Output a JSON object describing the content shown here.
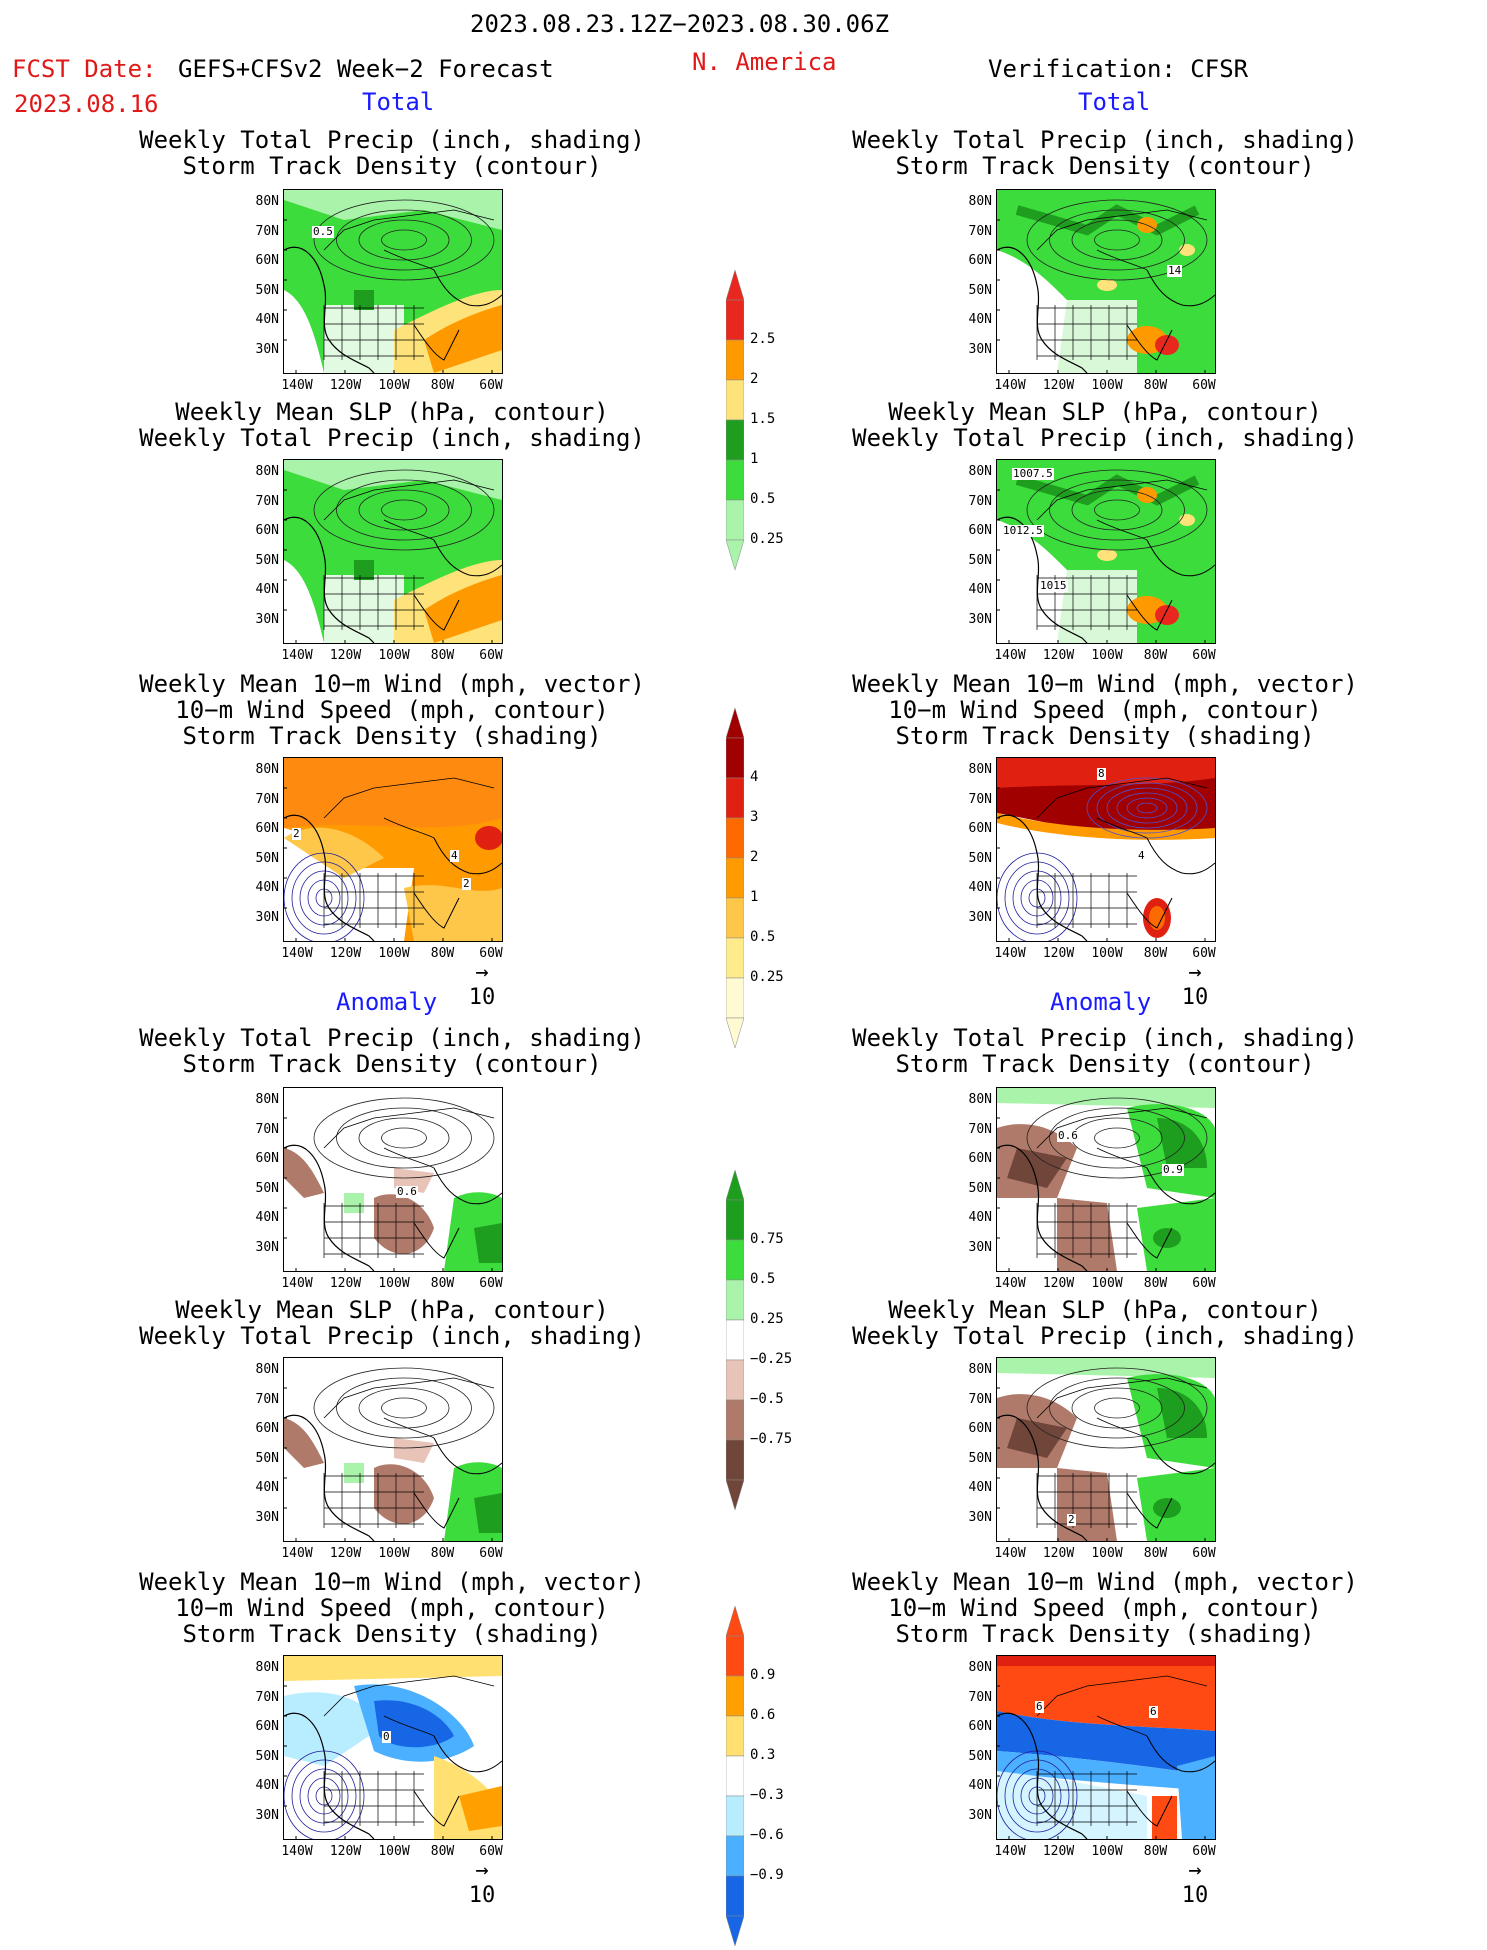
{
  "header": {
    "date_range": "2023.08.23.12Z−2023.08.30.06Z",
    "fcst_label": "FCST Date:",
    "fcst_model": "GEFS+CFSv2 Week−2 Forecast",
    "region": "N. America",
    "verification": "Verification: CFSR",
    "fcst_date": "2023.08.16"
  },
  "sections": {
    "total": "Total",
    "anomaly": "Anomaly"
  },
  "panel_titles": {
    "precip_track": "Weekly Total Precip (inch, shading)\nStorm Track Density (contour)",
    "slp_precip": "Weekly Mean SLP (hPa, contour)\nWeekly Total Precip (inch, shading)",
    "wind_track": "Weekly Mean 10−m Wind (mph, vector)\n10−m Wind Speed (mph, contour)\nStorm Track Density (shading)"
  },
  "axes": {
    "lat_labels": [
      "80N",
      "70N",
      "60N",
      "50N",
      "40N",
      "30N"
    ],
    "lon_labels": [
      "140W",
      "120W",
      "100W",
      "80W",
      "60W"
    ]
  },
  "vector_ref": "10",
  "colorbars": {
    "precip_total": {
      "labels": [
        "2.5",
        "2",
        "1.5",
        "1",
        "0.5",
        "0.25"
      ],
      "colors": [
        "#e8281e",
        "#ff9900",
        "#fde37a",
        "#1f9d1f",
        "#3ddc3d",
        "#aaf3aa"
      ]
    },
    "track_total": {
      "labels": [
        "4",
        "3",
        "2",
        "1",
        "0.5",
        "0.25"
      ],
      "colors": [
        "#a00000",
        "#e02010",
        "#ff6a00",
        "#ff9a00",
        "#ffc74a",
        "#fdeb8c",
        "#fffad2"
      ]
    },
    "precip_anom": {
      "labels": [
        "0.75",
        "0.5",
        "0.25",
        "−0.25",
        "−0.5",
        "−0.75"
      ],
      "colors": [
        "#1e9e1e",
        "#3ddc3d",
        "#aaf3aa",
        "#ffffff",
        "#e8c4b8",
        "#b07a6a",
        "#70453a"
      ]
    },
    "track_anom": {
      "labels": [
        "0.9",
        "0.6",
        "0.3",
        "−0.3",
        "−0.6",
        "−0.9"
      ],
      "colors": [
        "#ff4a14",
        "#ff9f00",
        "#ffe070",
        "#ffffff",
        "#b8ecff",
        "#4ab0ff",
        "#1666e6"
      ]
    }
  },
  "contour_labels": {
    "fc_total_precip": "0.5",
    "ver_total_precip": "14",
    "ver_slp_1": "1007.5",
    "ver_slp_2": "1012.5",
    "ver_slp_3": "1015",
    "fc_wind_1": "2",
    "fc_wind_2": "4",
    "fc_wind_3": "2",
    "ver_wind_1": "8",
    "ver_wind_2": "4",
    "fc_anom_precip": "0.6",
    "ver_anom_precip_1": "0.6",
    "ver_anom_precip_2": "0.9",
    "ver_anom_slp": "2",
    "fc_anom_wind": "0",
    "ver_anom_wind_1": "6",
    "ver_anom_wind_2": "6"
  }
}
